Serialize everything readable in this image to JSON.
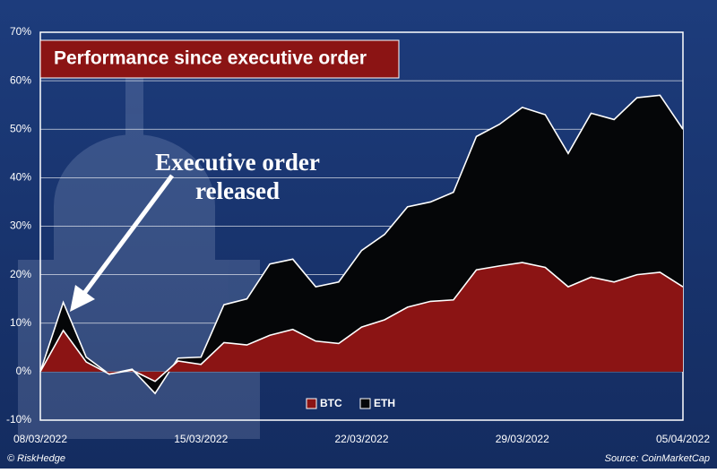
{
  "chart_data": {
    "type": "area",
    "title": "Performance since executive order",
    "annotation": "Executive order released",
    "categories": [
      "08/03/2022",
      null,
      null,
      null,
      null,
      null,
      null,
      "15/03/2022",
      null,
      null,
      null,
      null,
      null,
      null,
      "22/03/2022",
      null,
      null,
      null,
      null,
      null,
      null,
      "29/03/2022",
      null,
      null,
      null,
      null,
      null,
      null,
      "05/04/2022"
    ],
    "series": [
      {
        "name": "ETH",
        "color": "#050608",
        "values": [
          0,
          14.3,
          3,
          -0.5,
          0.5,
          -4.5,
          2.8,
          3,
          13.8,
          15,
          22.2,
          23.2,
          17.5,
          18.5,
          25,
          28.3,
          34,
          35,
          37,
          48.5,
          51,
          54.5,
          53,
          45,
          53.3,
          52,
          56.5,
          57,
          50
        ]
      },
      {
        "name": "BTC",
        "color": "#8b1414",
        "values": [
          0,
          8.5,
          2,
          -0.5,
          0.3,
          -2,
          2.2,
          1.5,
          6,
          5.5,
          7.5,
          8.7,
          6.3,
          5.8,
          9.2,
          10.7,
          13.3,
          14.5,
          14.8,
          21,
          21.8,
          22.5,
          21.5,
          17.5,
          19.5,
          18.5,
          20,
          20.5,
          17.5
        ]
      }
    ],
    "legend_order": [
      "BTC",
      "ETH"
    ],
    "ylim": [
      -10,
      70
    ],
    "yticks": [
      {
        "value": -10,
        "label": "-10%"
      },
      {
        "value": 0,
        "label": "0%"
      },
      {
        "value": 10,
        "label": "10%"
      },
      {
        "value": 20,
        "label": "20%"
      },
      {
        "value": 30,
        "label": "30%"
      },
      {
        "value": 40,
        "label": "40%"
      },
      {
        "value": 50,
        "label": "50%"
      },
      {
        "value": 60,
        "label": "60%"
      },
      {
        "value": 70,
        "label": "70%"
      }
    ],
    "grid": true,
    "footer_left": "© RiskHedge",
    "footer_right": "Source: CoinMarketCap"
  }
}
